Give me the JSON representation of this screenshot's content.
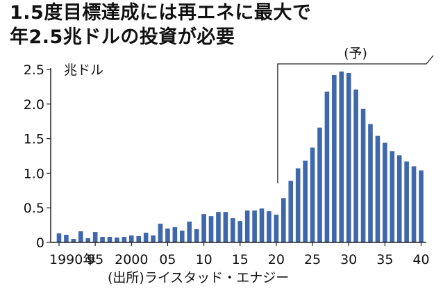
{
  "title_lines": [
    "1.5度目標達成には再エネに最大で",
    "年2.5兆ドルの投資が必要"
  ],
  "source": "(出所)ライスタッド・エナジー",
  "colors": {
    "bar": "#3e67ac",
    "axis": "#222222",
    "text": "#111111"
  },
  "chart_data": {
    "type": "bar",
    "title": "1.5度目標達成には再エネに最大で年2.5兆ドルの投資が必要",
    "ylabel": "兆ドル",
    "ylim": [
      0,
      2.5
    ],
    "yticks": [
      0,
      0.5,
      1.0,
      1.5,
      2.0,
      2.5
    ],
    "ytick_labels": [
      "0",
      "0.5",
      "1.0",
      "1.5",
      "2.0",
      "2.5"
    ],
    "xtick_labels": [
      {
        "year": 1990,
        "label": "1990年"
      },
      {
        "year": 1995,
        "label": "95"
      },
      {
        "year": 2000,
        "label": "2000"
      },
      {
        "year": 2005,
        "label": "05"
      },
      {
        "year": 2010,
        "label": "10"
      },
      {
        "year": 2015,
        "label": "15"
      },
      {
        "year": 2020,
        "label": "20"
      },
      {
        "year": 2025,
        "label": "25"
      },
      {
        "year": 2030,
        "label": "30"
      },
      {
        "year": 2035,
        "label": "35"
      },
      {
        "year": 2040,
        "label": "40"
      }
    ],
    "forecast_label": "(予)",
    "forecast_start_year": 2020,
    "years": [
      1990,
      1991,
      1992,
      1993,
      1994,
      1995,
      1996,
      1997,
      1998,
      1999,
      2000,
      2001,
      2002,
      2003,
      2004,
      2005,
      2006,
      2007,
      2008,
      2009,
      2010,
      2011,
      2012,
      2013,
      2014,
      2015,
      2016,
      2017,
      2018,
      2019,
      2020,
      2021,
      2022,
      2023,
      2024,
      2025,
      2026,
      2027,
      2028,
      2029,
      2030,
      2031,
      2032,
      2033,
      2034,
      2035,
      2036,
      2037,
      2038,
      2039,
      2040
    ],
    "values": [
      0.13,
      0.11,
      0.05,
      0.16,
      0.06,
      0.15,
      0.08,
      0.08,
      0.07,
      0.08,
      0.1,
      0.09,
      0.14,
      0.1,
      0.27,
      0.2,
      0.22,
      0.17,
      0.3,
      0.19,
      0.41,
      0.38,
      0.44,
      0.44,
      0.35,
      0.31,
      0.46,
      0.46,
      0.49,
      0.45,
      0.4,
      0.64,
      0.89,
      1.07,
      1.18,
      1.37,
      1.66,
      2.18,
      2.42,
      2.47,
      2.45,
      2.21,
      1.93,
      1.71,
      1.54,
      1.44,
      1.32,
      1.26,
      1.17,
      1.1,
      1.04
    ]
  }
}
